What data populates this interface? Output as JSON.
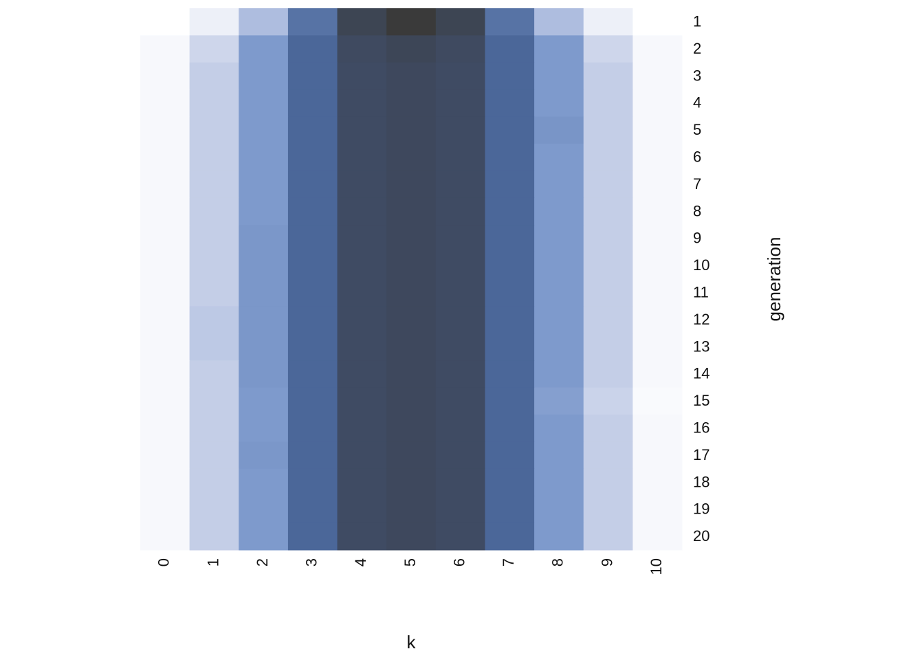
{
  "chart_data": {
    "type": "heatmap",
    "x_label": "k",
    "y_label": "generation",
    "x": [
      0,
      1,
      2,
      3,
      4,
      5,
      6,
      7,
      8,
      9,
      10
    ],
    "y": [
      1,
      2,
      3,
      4,
      5,
      6,
      7,
      8,
      9,
      10,
      11,
      12,
      13,
      14,
      15,
      16,
      17,
      18,
      19,
      20
    ],
    "z": [
      [
        0.001,
        0.01,
        0.044,
        0.117,
        0.205,
        0.246,
        0.205,
        0.117,
        0.044,
        0.01,
        0.001
      ],
      [
        0.005,
        0.025,
        0.075,
        0.13,
        0.185,
        0.2,
        0.185,
        0.13,
        0.075,
        0.025,
        0.005
      ],
      [
        0.005,
        0.03,
        0.075,
        0.13,
        0.18,
        0.19,
        0.18,
        0.13,
        0.075,
        0.03,
        0.005
      ],
      [
        0.005,
        0.03,
        0.075,
        0.13,
        0.18,
        0.19,
        0.18,
        0.13,
        0.075,
        0.03,
        0.005
      ],
      [
        0.005,
        0.03,
        0.075,
        0.13,
        0.18,
        0.19,
        0.18,
        0.13,
        0.08,
        0.03,
        0.005
      ],
      [
        0.005,
        0.03,
        0.075,
        0.13,
        0.18,
        0.19,
        0.18,
        0.13,
        0.075,
        0.03,
        0.005
      ],
      [
        0.005,
        0.03,
        0.075,
        0.13,
        0.18,
        0.19,
        0.18,
        0.13,
        0.075,
        0.03,
        0.005
      ],
      [
        0.005,
        0.03,
        0.075,
        0.13,
        0.18,
        0.19,
        0.18,
        0.13,
        0.075,
        0.03,
        0.005
      ],
      [
        0.005,
        0.03,
        0.078,
        0.13,
        0.18,
        0.19,
        0.18,
        0.13,
        0.075,
        0.03,
        0.005
      ],
      [
        0.005,
        0.03,
        0.078,
        0.13,
        0.18,
        0.19,
        0.18,
        0.13,
        0.075,
        0.03,
        0.005
      ],
      [
        0.005,
        0.03,
        0.078,
        0.13,
        0.18,
        0.19,
        0.18,
        0.13,
        0.075,
        0.03,
        0.005
      ],
      [
        0.005,
        0.034,
        0.078,
        0.13,
        0.18,
        0.19,
        0.18,
        0.13,
        0.075,
        0.03,
        0.005
      ],
      [
        0.005,
        0.034,
        0.078,
        0.13,
        0.18,
        0.19,
        0.18,
        0.13,
        0.075,
        0.03,
        0.005
      ],
      [
        0.005,
        0.03,
        0.078,
        0.13,
        0.18,
        0.19,
        0.18,
        0.13,
        0.075,
        0.03,
        0.005
      ],
      [
        0.005,
        0.03,
        0.075,
        0.13,
        0.18,
        0.19,
        0.18,
        0.13,
        0.07,
        0.027,
        0.004
      ],
      [
        0.005,
        0.03,
        0.075,
        0.13,
        0.18,
        0.19,
        0.18,
        0.13,
        0.075,
        0.03,
        0.005
      ],
      [
        0.005,
        0.03,
        0.078,
        0.13,
        0.18,
        0.19,
        0.18,
        0.13,
        0.075,
        0.03,
        0.005
      ],
      [
        0.005,
        0.03,
        0.075,
        0.13,
        0.18,
        0.19,
        0.18,
        0.13,
        0.075,
        0.03,
        0.005
      ],
      [
        0.005,
        0.03,
        0.075,
        0.13,
        0.18,
        0.19,
        0.18,
        0.13,
        0.075,
        0.03,
        0.005
      ],
      [
        0.005,
        0.03,
        0.075,
        0.13,
        0.18,
        0.19,
        0.18,
        0.13,
        0.075,
        0.03,
        0.005
      ]
    ],
    "colorscale": [
      [
        0,
        "#ffffff"
      ],
      [
        0.12,
        "#c3cde7"
      ],
      [
        0.3,
        "#7e9acc"
      ],
      [
        0.53,
        "#4a6698"
      ],
      [
        0.73,
        "#3f4b63"
      ],
      [
        1,
        "#3a3a3a"
      ]
    ]
  }
}
